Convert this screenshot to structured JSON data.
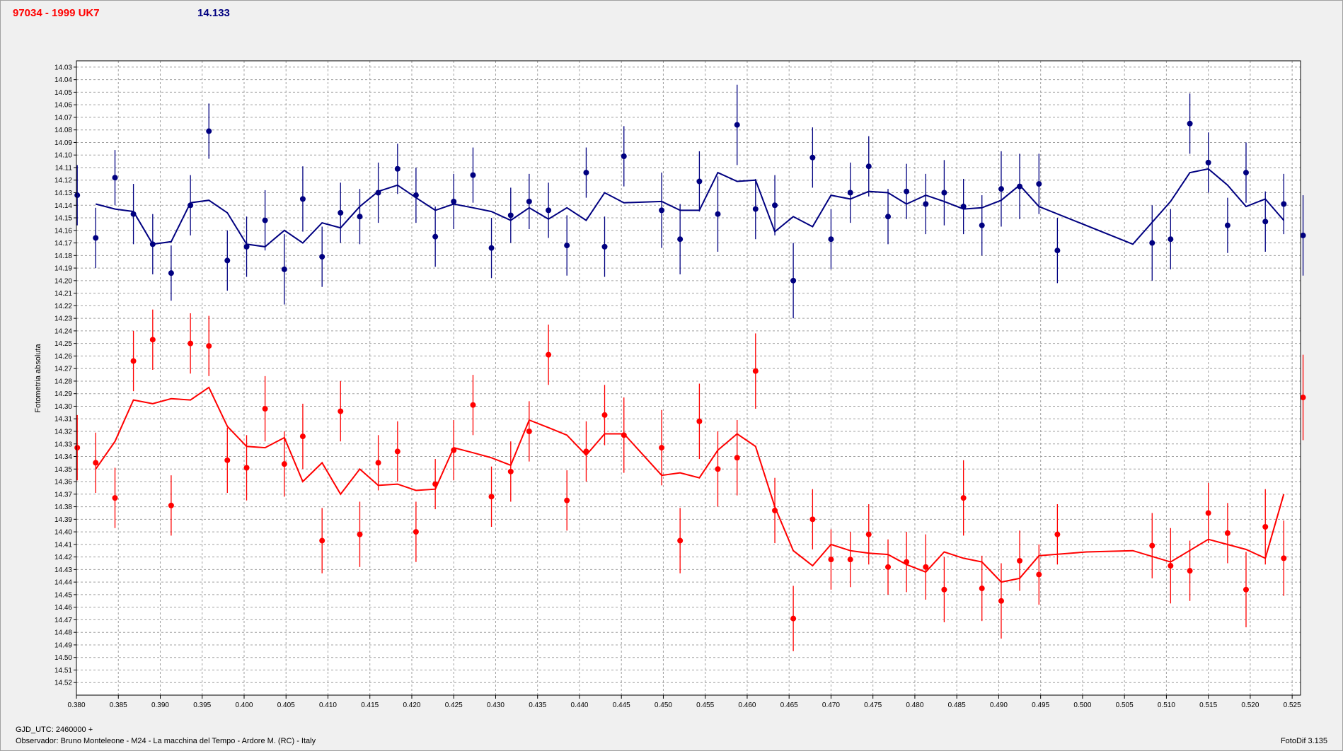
{
  "header": {
    "object": "97034 - 1999 UK7",
    "value": "14.133"
  },
  "footer": {
    "gjd": "GJD_UTC: 2460000 +",
    "observer": "Observador: Bruno Monteleone - M24 - La macchina del Tempo - Ardore M. (RC) - Italy",
    "version": "FotoDif 3.135"
  },
  "chart_data": {
    "type": "scatter",
    "title": "97034 - 1999 UK7",
    "ylabel": "Fotometria absoluta",
    "xlabel": "",
    "xlim": [
      0.38,
      0.526
    ],
    "ylim": [
      14.53,
      14.025
    ],
    "y_inverted": true,
    "grid": true,
    "x_ticks": [
      "0.380",
      "0.385",
      "0.390",
      "0.395",
      "0.400",
      "0.405",
      "0.410",
      "0.415",
      "0.420",
      "0.425",
      "0.430",
      "0.435",
      "0.440",
      "0.445",
      "0.450",
      "0.455",
      "0.460",
      "0.465",
      "0.470",
      "0.475",
      "0.480",
      "0.485",
      "0.490",
      "0.495",
      "0.500",
      "0.505",
      "0.510",
      "0.515",
      "0.520",
      "0.525"
    ],
    "y_ticks": [
      "14.03",
      "14.04",
      "14.05",
      "14.06",
      "14.07",
      "14.08",
      "14.09",
      "14.10",
      "14.11",
      "14.12",
      "14.13",
      "14.14",
      "14.15",
      "14.16",
      "14.17",
      "14.18",
      "14.19",
      "14.20",
      "14.21",
      "14.22",
      "14.23",
      "14.24",
      "14.25",
      "14.26",
      "14.27",
      "14.28",
      "14.29",
      "14.30",
      "14.31",
      "14.32",
      "14.33",
      "14.34",
      "14.35",
      "14.36",
      "14.37",
      "14.38",
      "14.39",
      "14.40",
      "14.41",
      "14.42",
      "14.43",
      "14.44",
      "14.45",
      "14.46",
      "14.47",
      "14.48",
      "14.49",
      "14.50",
      "14.51",
      "14.52"
    ],
    "series": [
      {
        "color": "#000080",
        "points": [
          [
            0.3801,
            14.132,
            0.024
          ],
          [
            0.3823,
            14.166,
            0.024
          ],
          [
            0.3846,
            14.118,
            0.022
          ],
          [
            0.3868,
            14.147,
            0.024
          ],
          [
            0.3891,
            14.171,
            0.024
          ],
          [
            0.3913,
            14.194,
            0.022
          ],
          [
            0.3936,
            14.14,
            0.024
          ],
          [
            0.3958,
            14.081,
            0.022
          ],
          [
            0.398,
            14.184,
            0.024
          ],
          [
            0.4003,
            14.173,
            0.024
          ],
          [
            0.4025,
            14.152,
            0.024
          ],
          [
            0.4048,
            14.191,
            0.028
          ],
          [
            0.407,
            14.135,
            0.026
          ],
          [
            0.4093,
            14.181,
            0.024
          ],
          [
            0.4115,
            14.146,
            0.024
          ],
          [
            0.4138,
            14.149,
            0.022
          ],
          [
            0.416,
            14.13,
            0.024
          ],
          [
            0.4183,
            14.111,
            0.02
          ],
          [
            0.4205,
            14.132,
            0.022
          ],
          [
            0.4228,
            14.165,
            0.024
          ],
          [
            0.425,
            14.137,
            0.022
          ],
          [
            0.4273,
            14.116,
            0.022
          ],
          [
            0.4295,
            14.174,
            0.024
          ],
          [
            0.4318,
            14.148,
            0.022
          ],
          [
            0.434,
            14.137,
            0.022
          ],
          [
            0.4363,
            14.144,
            0.022
          ],
          [
            0.4385,
            14.172,
            0.024
          ],
          [
            0.4408,
            14.114,
            0.02
          ],
          [
            0.443,
            14.173,
            0.024
          ],
          [
            0.4453,
            14.101,
            0.024
          ],
          [
            0.4498,
            14.144,
            0.03
          ],
          [
            0.452,
            14.167,
            0.028
          ],
          [
            0.4543,
            14.121,
            0.024
          ],
          [
            0.4565,
            14.147,
            0.03
          ],
          [
            0.4588,
            14.076,
            0.032
          ],
          [
            0.461,
            14.143,
            0.024
          ],
          [
            0.4633,
            14.14,
            0.024
          ],
          [
            0.4655,
            14.2,
            0.03
          ],
          [
            0.4678,
            14.102,
            0.024
          ],
          [
            0.47,
            14.167,
            0.024
          ],
          [
            0.4723,
            14.13,
            0.024
          ],
          [
            0.4745,
            14.109,
            0.024
          ],
          [
            0.4768,
            14.149,
            0.022
          ],
          [
            0.479,
            14.129,
            0.022
          ],
          [
            0.4813,
            14.139,
            0.024
          ],
          [
            0.4835,
            14.13,
            0.026
          ],
          [
            0.4858,
            14.141,
            0.022
          ],
          [
            0.488,
            14.156,
            0.024
          ],
          [
            0.4903,
            14.127,
            0.03
          ],
          [
            0.4925,
            14.125,
            0.026
          ],
          [
            0.4948,
            14.123,
            0.024
          ],
          [
            0.497,
            14.176,
            0.026
          ],
          [
            0.5083,
            14.17,
            0.03
          ],
          [
            0.5105,
            14.167,
            0.024
          ],
          [
            0.5128,
            14.075,
            0.024
          ],
          [
            0.515,
            14.106,
            0.024
          ],
          [
            0.5173,
            14.156,
            0.022
          ],
          [
            0.5195,
            14.114,
            0.024
          ],
          [
            0.5218,
            14.153,
            0.024
          ],
          [
            0.524,
            14.139,
            0.024
          ],
          [
            0.5263,
            14.164,
            0.032
          ]
        ],
        "fit": [
          [
            0.3823,
            14.139
          ],
          [
            0.3846,
            14.143
          ],
          [
            0.3868,
            14.145
          ],
          [
            0.3891,
            14.171
          ],
          [
            0.3913,
            14.169
          ],
          [
            0.3936,
            14.138
          ],
          [
            0.3958,
            14.136
          ],
          [
            0.398,
            14.146
          ],
          [
            0.4003,
            14.171
          ],
          [
            0.4025,
            14.173
          ],
          [
            0.4048,
            14.16
          ],
          [
            0.407,
            14.17
          ],
          [
            0.4093,
            14.154
          ],
          [
            0.4115,
            14.158
          ],
          [
            0.4138,
            14.141
          ],
          [
            0.416,
            14.129
          ],
          [
            0.4183,
            14.124
          ],
          [
            0.4205,
            14.134
          ],
          [
            0.4228,
            14.144
          ],
          [
            0.425,
            14.139
          ],
          [
            0.4273,
            14.142
          ],
          [
            0.4295,
            14.145
          ],
          [
            0.4318,
            14.152
          ],
          [
            0.434,
            14.142
          ],
          [
            0.4363,
            14.151
          ],
          [
            0.4385,
            14.142
          ],
          [
            0.4408,
            14.152
          ],
          [
            0.443,
            14.13
          ],
          [
            0.4453,
            14.138
          ],
          [
            0.4498,
            14.137
          ],
          [
            0.452,
            14.144
          ],
          [
            0.4543,
            14.144
          ],
          [
            0.4565,
            14.114
          ],
          [
            0.4588,
            14.121
          ],
          [
            0.461,
            14.12
          ],
          [
            0.4633,
            14.161
          ],
          [
            0.4655,
            14.149
          ],
          [
            0.4678,
            14.157
          ],
          [
            0.47,
            14.132
          ],
          [
            0.4723,
            14.135
          ],
          [
            0.4745,
            14.129
          ],
          [
            0.4768,
            14.13
          ],
          [
            0.479,
            14.139
          ],
          [
            0.4813,
            14.132
          ],
          [
            0.4835,
            14.137
          ],
          [
            0.4858,
            14.143
          ],
          [
            0.488,
            14.142
          ],
          [
            0.4903,
            14.136
          ],
          [
            0.4925,
            14.124
          ],
          [
            0.4948,
            14.141
          ],
          [
            0.506,
            14.171
          ],
          [
            0.5105,
            14.137
          ],
          [
            0.5128,
            14.114
          ],
          [
            0.515,
            14.111
          ],
          [
            0.5173,
            14.124
          ],
          [
            0.5195,
            14.141
          ],
          [
            0.5218,
            14.135
          ],
          [
            0.524,
            14.152
          ]
        ]
      },
      {
        "color": "#ff0000",
        "points": [
          [
            0.3801,
            14.333,
            0.026
          ],
          [
            0.3823,
            14.345,
            0.024
          ],
          [
            0.3846,
            14.373,
            0.024
          ],
          [
            0.3868,
            14.264,
            0.024
          ],
          [
            0.3891,
            14.247,
            0.024
          ],
          [
            0.3913,
            14.379,
            0.024
          ],
          [
            0.3936,
            14.25,
            0.024
          ],
          [
            0.3958,
            14.252,
            0.024
          ],
          [
            0.398,
            14.343,
            0.026
          ],
          [
            0.4003,
            14.349,
            0.026
          ],
          [
            0.4025,
            14.302,
            0.026
          ],
          [
            0.4048,
            14.346,
            0.026
          ],
          [
            0.407,
            14.324,
            0.026
          ],
          [
            0.4093,
            14.407,
            0.026
          ],
          [
            0.4115,
            14.304,
            0.024
          ],
          [
            0.4138,
            14.402,
            0.026
          ],
          [
            0.416,
            14.345,
            0.022
          ],
          [
            0.4183,
            14.336,
            0.024
          ],
          [
            0.4205,
            14.4,
            0.024
          ],
          [
            0.4228,
            14.362,
            0.02
          ],
          [
            0.425,
            14.335,
            0.024
          ],
          [
            0.4273,
            14.299,
            0.024
          ],
          [
            0.4295,
            14.372,
            0.024
          ],
          [
            0.4318,
            14.352,
            0.024
          ],
          [
            0.434,
            14.32,
            0.024
          ],
          [
            0.4363,
            14.259,
            0.024
          ],
          [
            0.4385,
            14.375,
            0.024
          ],
          [
            0.4408,
            14.336,
            0.024
          ],
          [
            0.443,
            14.307,
            0.024
          ],
          [
            0.4453,
            14.323,
            0.03
          ],
          [
            0.4498,
            14.333,
            0.03
          ],
          [
            0.452,
            14.407,
            0.026
          ],
          [
            0.4543,
            14.312,
            0.03
          ],
          [
            0.4565,
            14.35,
            0.03
          ],
          [
            0.4588,
            14.341,
            0.03
          ],
          [
            0.461,
            14.272,
            0.03
          ],
          [
            0.4633,
            14.383,
            0.026
          ],
          [
            0.4655,
            14.469,
            0.026
          ],
          [
            0.4678,
            14.39,
            0.024
          ],
          [
            0.47,
            14.422,
            0.024
          ],
          [
            0.4723,
            14.422,
            0.022
          ],
          [
            0.4745,
            14.402,
            0.024
          ],
          [
            0.4768,
            14.428,
            0.022
          ],
          [
            0.479,
            14.424,
            0.024
          ],
          [
            0.4813,
            14.428,
            0.026
          ],
          [
            0.4835,
            14.446,
            0.026
          ],
          [
            0.4858,
            14.373,
            0.03
          ],
          [
            0.488,
            14.445,
            0.026
          ],
          [
            0.4903,
            14.455,
            0.03
          ],
          [
            0.4925,
            14.423,
            0.024
          ],
          [
            0.4948,
            14.434,
            0.024
          ],
          [
            0.497,
            14.402,
            0.024
          ],
          [
            0.5083,
            14.411,
            0.026
          ],
          [
            0.5105,
            14.427,
            0.03
          ],
          [
            0.5128,
            14.431,
            0.024
          ],
          [
            0.515,
            14.385,
            0.024
          ],
          [
            0.5173,
            14.401,
            0.024
          ],
          [
            0.5195,
            14.446,
            0.03
          ],
          [
            0.5218,
            14.396,
            0.03
          ],
          [
            0.524,
            14.421,
            0.03
          ],
          [
            0.5263,
            14.293,
            0.034
          ]
        ],
        "fit": [
          [
            0.3823,
            14.35
          ],
          [
            0.3846,
            14.328
          ],
          [
            0.3868,
            14.295
          ],
          [
            0.3891,
            14.298
          ],
          [
            0.3913,
            14.294
          ],
          [
            0.3936,
            14.295
          ],
          [
            0.3958,
            14.285
          ],
          [
            0.398,
            14.316
          ],
          [
            0.4003,
            14.332
          ],
          [
            0.4025,
            14.333
          ],
          [
            0.4048,
            14.325
          ],
          [
            0.407,
            14.36
          ],
          [
            0.4093,
            14.345
          ],
          [
            0.4115,
            14.37
          ],
          [
            0.4138,
            14.35
          ],
          [
            0.416,
            14.363
          ],
          [
            0.4183,
            14.362
          ],
          [
            0.4205,
            14.367
          ],
          [
            0.4228,
            14.366
          ],
          [
            0.425,
            14.333
          ],
          [
            0.4273,
            14.337
          ],
          [
            0.4295,
            14.341
          ],
          [
            0.4318,
            14.347
          ],
          [
            0.434,
            14.311
          ],
          [
            0.4363,
            14.317
          ],
          [
            0.4385,
            14.323
          ],
          [
            0.4408,
            14.339
          ],
          [
            0.443,
            14.322
          ],
          [
            0.4453,
            14.322
          ],
          [
            0.4498,
            14.355
          ],
          [
            0.452,
            14.353
          ],
          [
            0.4543,
            14.357
          ],
          [
            0.4565,
            14.335
          ],
          [
            0.4588,
            14.322
          ],
          [
            0.461,
            14.332
          ],
          [
            0.4633,
            14.38
          ],
          [
            0.4655,
            14.415
          ],
          [
            0.4678,
            14.427
          ],
          [
            0.47,
            14.41
          ],
          [
            0.4723,
            14.415
          ],
          [
            0.4745,
            14.417
          ],
          [
            0.4768,
            14.418
          ],
          [
            0.479,
            14.426
          ],
          [
            0.4813,
            14.432
          ],
          [
            0.4835,
            14.416
          ],
          [
            0.4858,
            14.421
          ],
          [
            0.488,
            14.424
          ],
          [
            0.4903,
            14.44
          ],
          [
            0.4925,
            14.437
          ],
          [
            0.4948,
            14.419
          ],
          [
            0.5005,
            14.416
          ],
          [
            0.506,
            14.415
          ],
          [
            0.5105,
            14.424
          ],
          [
            0.515,
            14.406
          ],
          [
            0.5195,
            14.414
          ],
          [
            0.5218,
            14.421
          ],
          [
            0.524,
            14.37
          ]
        ]
      }
    ]
  }
}
